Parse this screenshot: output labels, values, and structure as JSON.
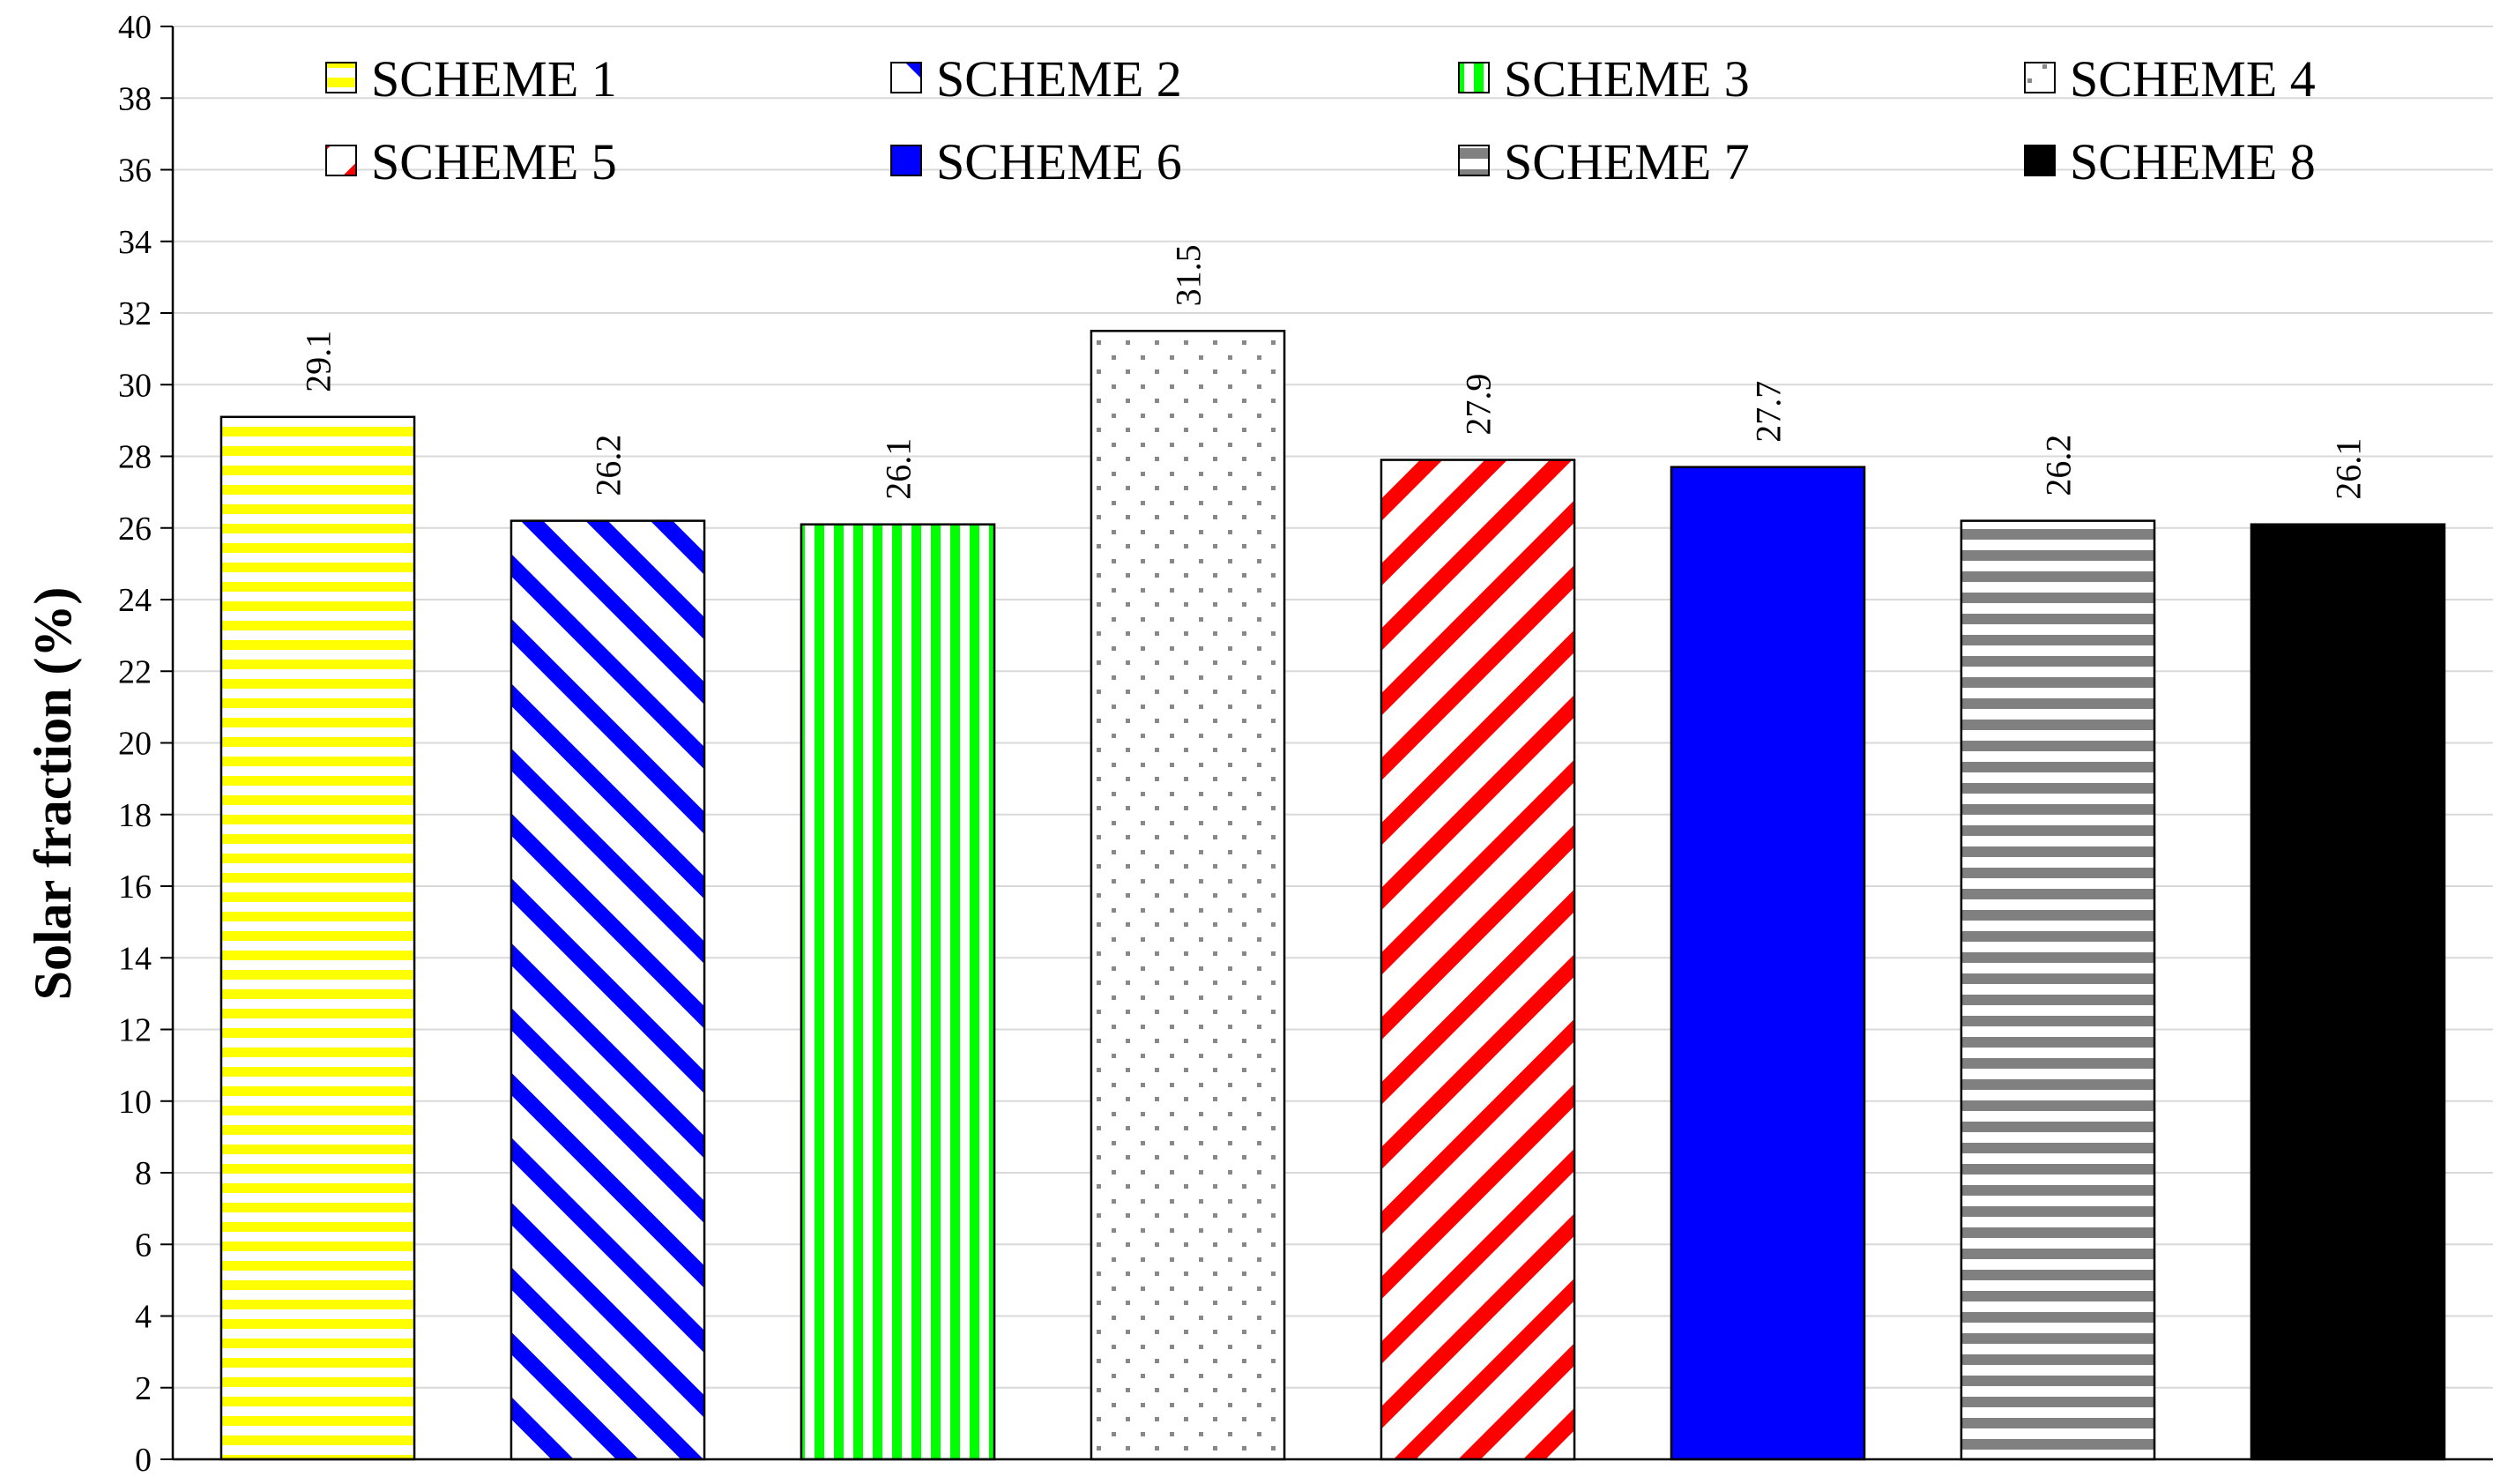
{
  "chart_data": {
    "type": "bar",
    "title": "",
    "xlabel": "",
    "ylabel": "Solar fraction (%)",
    "ylim": [
      0,
      40
    ],
    "ytick_step": 2,
    "grid": true,
    "legend_position": "top",
    "categories": [
      "SCHEME 1",
      "SCHEME 2",
      "SCHEME 3",
      "SCHEME 4",
      "SCHEME 5",
      "SCHEME 6",
      "SCHEME 7",
      "SCHEME 8"
    ],
    "values": [
      29.1,
      26.2,
      26.1,
      31.5,
      27.9,
      27.7,
      26.2,
      26.1
    ],
    "data_labels": [
      "29.1",
      "26.2",
      "26.1",
      "31.5",
      "27.9",
      "27.7",
      "26.2",
      "26.1"
    ],
    "series_styles": [
      {
        "pattern": "horizontal-stripes",
        "color": "#FFFF00"
      },
      {
        "pattern": "diagonal-up",
        "color": "#0000FF"
      },
      {
        "pattern": "vertical-stripes",
        "color": "#00FF00"
      },
      {
        "pattern": "dots",
        "color": "#888888"
      },
      {
        "pattern": "diagonal-down",
        "color": "#FF0000"
      },
      {
        "pattern": "solid",
        "color": "#0000FF"
      },
      {
        "pattern": "horizontal-stripes",
        "color": "#808080"
      },
      {
        "pattern": "solid",
        "color": "#000000"
      }
    ]
  }
}
